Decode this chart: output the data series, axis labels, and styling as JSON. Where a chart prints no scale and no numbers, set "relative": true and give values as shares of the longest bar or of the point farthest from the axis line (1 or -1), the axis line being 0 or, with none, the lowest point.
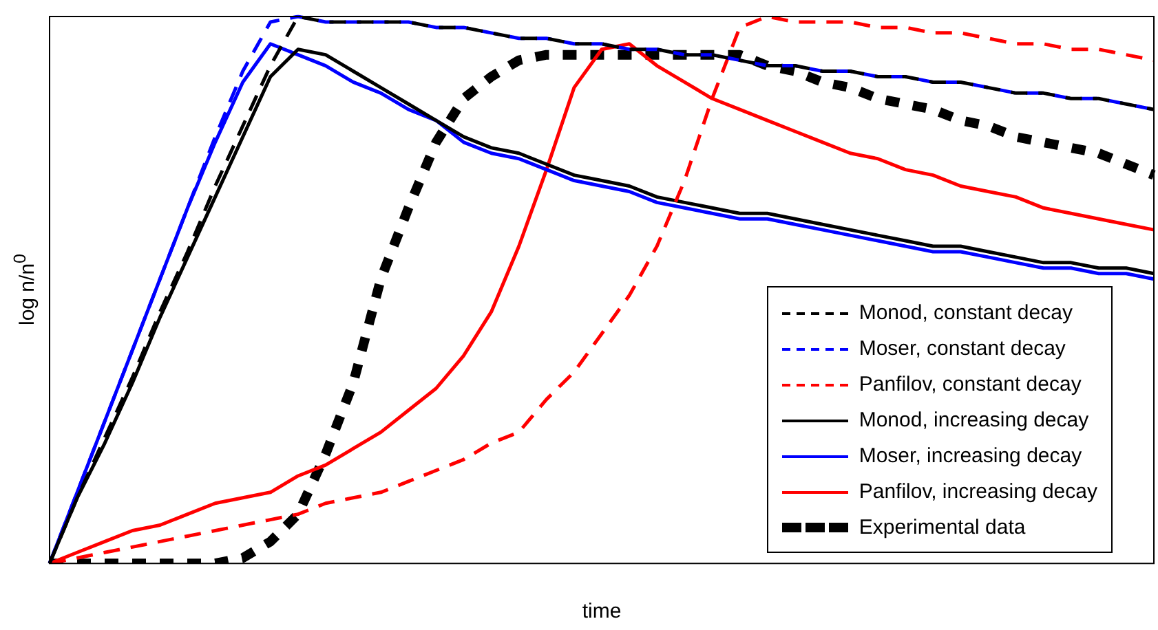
{
  "chart_data": {
    "type": "line",
    "relative": true,
    "xlabel": "time",
    "ylabel": "log n/n$^{0}$",
    "legend": "bottom right",
    "grid": false,
    "categories": [
      null,
      null,
      null,
      null,
      null,
      null,
      null,
      null,
      null,
      null,
      null,
      null,
      null,
      null,
      null,
      null,
      null,
      null,
      null,
      null,
      null,
      null,
      null,
      null,
      null,
      null,
      null,
      null,
      null,
      null,
      null,
      null,
      null,
      null,
      null,
      null,
      null,
      null,
      null,
      null,
      null
    ],
    "series": [
      {
        "name": "Monod, constant decay",
        "color": "#000000",
        "line_style": "dashed",
        "values": [
          0,
          0.12,
          0.23,
          0.34,
          0.46,
          0.57,
          0.69,
          0.8,
          0.91,
          1,
          0.99,
          0.99,
          0.99,
          0.99,
          0.98,
          0.98,
          0.97,
          0.96,
          0.96,
          0.95,
          0.95,
          0.94,
          0.94,
          0.93,
          0.93,
          0.92,
          0.91,
          0.91,
          0.9,
          0.9,
          0.89,
          0.89,
          0.88,
          0.88,
          0.87,
          0.86,
          0.86,
          0.85,
          0.85,
          0.84,
          0.83
        ]
      },
      {
        "name": "Moser, constant decay",
        "color": "#0000ff",
        "line_style": "dashed",
        "values": [
          0,
          0.13,
          0.26,
          0.39,
          0.52,
          0.65,
          0.78,
          0.9,
          0.99,
          1,
          0.99,
          0.99,
          0.99,
          0.99,
          0.98,
          0.98,
          0.97,
          0.96,
          0.96,
          0.95,
          0.95,
          0.94,
          0.94,
          0.93,
          0.93,
          0.92,
          0.91,
          0.91,
          0.9,
          0.9,
          0.89,
          0.89,
          0.88,
          0.88,
          0.87,
          0.86,
          0.86,
          0.85,
          0.85,
          0.84,
          0.83
        ]
      },
      {
        "name": "Panfilov, constant decay",
        "color": "#ff0000",
        "line_style": "dashed",
        "values": [
          0,
          0.01,
          0.02,
          0.03,
          0.04,
          0.05,
          0.06,
          0.07,
          0.08,
          0.09,
          0.11,
          0.12,
          0.13,
          0.15,
          0.17,
          0.19,
          0.22,
          0.24,
          0.3,
          0.35,
          0.42,
          0.49,
          0.58,
          0.7,
          0.85,
          0.98,
          1,
          0.99,
          0.99,
          0.99,
          0.98,
          0.98,
          0.97,
          0.97,
          0.96,
          0.95,
          0.95,
          0.94,
          0.94,
          0.93,
          0.92
        ]
      },
      {
        "name": "Monod, increasing decay",
        "color": "#000000",
        "line_style": "solid",
        "values": [
          0,
          0.12,
          0.22,
          0.33,
          0.45,
          0.56,
          0.67,
          0.78,
          0.89,
          0.94,
          0.93,
          0.9,
          0.87,
          0.84,
          0.81,
          0.78,
          0.76,
          0.75,
          0.73,
          0.71,
          0.7,
          0.69,
          0.67,
          0.66,
          0.65,
          0.64,
          0.64,
          0.63,
          0.62,
          0.61,
          0.6,
          0.59,
          0.58,
          0.58,
          0.57,
          0.56,
          0.55,
          0.55,
          0.54,
          0.54,
          0.53
        ]
      },
      {
        "name": "Moser, increasing decay",
        "color": "#0000ff",
        "line_style": "solid",
        "values": [
          0,
          0.13,
          0.26,
          0.39,
          0.52,
          0.65,
          0.77,
          0.88,
          0.95,
          0.93,
          0.91,
          0.88,
          0.86,
          0.83,
          0.81,
          0.77,
          0.75,
          0.74,
          0.72,
          0.7,
          0.69,
          0.68,
          0.66,
          0.65,
          0.64,
          0.63,
          0.63,
          0.62,
          0.61,
          0.6,
          0.59,
          0.58,
          0.57,
          0.57,
          0.56,
          0.55,
          0.54,
          0.54,
          0.53,
          0.53,
          0.52
        ]
      },
      {
        "name": "Panfilov, increasing decay",
        "color": "#ff0000",
        "line_style": "solid",
        "values": [
          0,
          0.02,
          0.04,
          0.06,
          0.07,
          0.09,
          0.11,
          0.12,
          0.13,
          0.16,
          0.18,
          0.21,
          0.24,
          0.28,
          0.32,
          0.38,
          0.46,
          0.58,
          0.72,
          0.87,
          0.94,
          0.95,
          0.91,
          0.88,
          0.85,
          0.83,
          0.81,
          0.79,
          0.77,
          0.75,
          0.74,
          0.72,
          0.71,
          0.69,
          0.68,
          0.67,
          0.65,
          0.64,
          0.63,
          0.62,
          0.61
        ]
      },
      {
        "name": "Experimental data",
        "color": "#000000",
        "line_style": "dotted",
        "values": [
          0,
          0,
          0,
          0,
          0,
          0,
          0,
          0.01,
          0.04,
          0.09,
          0.2,
          0.33,
          0.52,
          0.65,
          0.77,
          0.85,
          0.89,
          0.92,
          0.93,
          0.93,
          0.93,
          0.93,
          0.93,
          0.93,
          0.93,
          0.93,
          0.91,
          0.9,
          0.88,
          0.87,
          0.85,
          0.84,
          0.83,
          0.81,
          0.8,
          0.78,
          0.77,
          0.76,
          0.75,
          0.73,
          0.71
        ]
      }
    ]
  }
}
